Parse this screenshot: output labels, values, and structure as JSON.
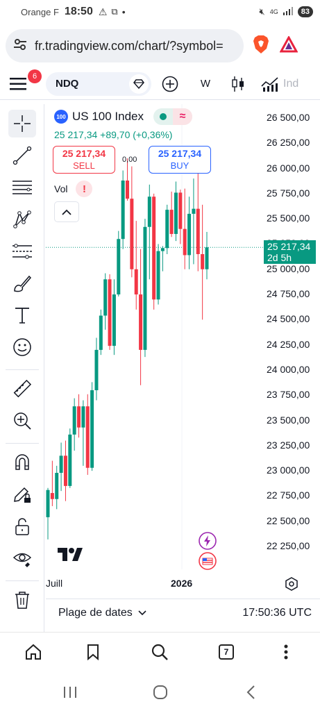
{
  "status_bar": {
    "carrier": "Orange F",
    "time": "18:50",
    "network": "4G",
    "battery": "83"
  },
  "browser": {
    "url": "fr.tradingview.com/chart/?symbol="
  },
  "toolbar": {
    "menu_badge": "6",
    "symbol": "NDQ",
    "interval": "W",
    "indicators_label": "Ind"
  },
  "legend": {
    "title": "US 100 Index",
    "logo_text": "100",
    "price_line": "25 217,34  +89,70 (+0,36%)",
    "sell_price": "25 217,34",
    "sell_label": "SELL",
    "buy_price": "25 217,34",
    "buy_label": "BUY",
    "spread": "0,00",
    "vol_label": "Vol",
    "vol_warning": "!"
  },
  "price_axis": {
    "labels": [
      "26 500,00",
      "26 250,00",
      "26 000,00",
      "25 750,00",
      "25 500,00",
      "25 250,00",
      "25 000,00",
      "24 750,00",
      "24 500,00",
      "24 250,00",
      "24 000,00",
      "23 750,00",
      "23 500,00",
      "23 250,00",
      "23 000,00",
      "22 750,00",
      "22 500,00",
      "22 250,00"
    ],
    "current_price": "25 217,34",
    "countdown": "2d 5h"
  },
  "time_axis": {
    "left_label": "Juill",
    "year_label": "2026"
  },
  "bottom": {
    "date_range": "Plage de dates",
    "time": "17:50:36 UTC"
  },
  "colors": {
    "up": "#089981",
    "down": "#f23645",
    "accent": "#2962ff"
  },
  "chart_data": {
    "type": "candlestick",
    "interval": "W",
    "y_unit": "index points",
    "ylim": [
      22180,
      26600
    ],
    "current_price": 25217.34,
    "candles": [
      {
        "o": 22540,
        "h": 22830,
        "l": 22320,
        "c": 22810
      },
      {
        "o": 22780,
        "h": 23100,
        "l": 22650,
        "c": 22720
      },
      {
        "o": 22720,
        "h": 23050,
        "l": 22620,
        "c": 22980
      },
      {
        "o": 22980,
        "h": 23280,
        "l": 22800,
        "c": 23150
      },
      {
        "o": 23150,
        "h": 23300,
        "l": 22700,
        "c": 22850
      },
      {
        "o": 22850,
        "h": 23420,
        "l": 22830,
        "c": 23360
      },
      {
        "o": 23360,
        "h": 23720,
        "l": 23200,
        "c": 23640
      },
      {
        "o": 23640,
        "h": 23760,
        "l": 23330,
        "c": 23430
      },
      {
        "o": 23430,
        "h": 23700,
        "l": 23050,
        "c": 23640
      },
      {
        "o": 23640,
        "h": 23760,
        "l": 22960,
        "c": 23030
      },
      {
        "o": 23030,
        "h": 23880,
        "l": 23000,
        "c": 23800
      },
      {
        "o": 23800,
        "h": 24320,
        "l": 23700,
        "c": 24200
      },
      {
        "o": 24200,
        "h": 24600,
        "l": 24150,
        "c": 24540
      },
      {
        "o": 24540,
        "h": 24960,
        "l": 24400,
        "c": 24900
      },
      {
        "o": 24900,
        "h": 24950,
        "l": 24200,
        "c": 24240
      },
      {
        "o": 24240,
        "h": 24900,
        "l": 24150,
        "c": 24750
      },
      {
        "o": 24750,
        "h": 25380,
        "l": 24730,
        "c": 25300
      },
      {
        "o": 25300,
        "h": 25980,
        "l": 25200,
        "c": 25880
      },
      {
        "o": 25880,
        "h": 26100,
        "l": 25680,
        "c": 25700
      },
      {
        "o": 25700,
        "h": 26020,
        "l": 24920,
        "c": 25000
      },
      {
        "o": 25000,
        "h": 25480,
        "l": 24600,
        "c": 24750
      },
      {
        "o": 24750,
        "h": 25200,
        "l": 23850,
        "c": 24200
      },
      {
        "o": 24200,
        "h": 25500,
        "l": 24130,
        "c": 25420
      },
      {
        "o": 25420,
        "h": 25840,
        "l": 24900,
        "c": 25720
      },
      {
        "o": 25720,
        "h": 25750,
        "l": 24600,
        "c": 24700
      },
      {
        "o": 24700,
        "h": 25250,
        "l": 24650,
        "c": 25180
      },
      {
        "o": 25180,
        "h": 25230,
        "l": 24980,
        "c": 25210
      },
      {
        "o": 25210,
        "h": 25640,
        "l": 25150,
        "c": 25590
      },
      {
        "o": 25590,
        "h": 25770,
        "l": 25320,
        "c": 25350
      },
      {
        "o": 25350,
        "h": 25870,
        "l": 25280,
        "c": 25760
      },
      {
        "o": 25760,
        "h": 25790,
        "l": 25250,
        "c": 25400
      },
      {
        "o": 25400,
        "h": 25800,
        "l": 25000,
        "c": 25140
      },
      {
        "o": 25140,
        "h": 25720,
        "l": 25000,
        "c": 25550
      },
      {
        "o": 25550,
        "h": 25900,
        "l": 25050,
        "c": 25600
      },
      {
        "o": 25600,
        "h": 25980,
        "l": 24980,
        "c": 25150
      },
      {
        "o": 25150,
        "h": 25640,
        "l": 24500,
        "c": 25000
      },
      {
        "o": 25000,
        "h": 25370,
        "l": 24900,
        "c": 25217.34
      }
    ]
  }
}
